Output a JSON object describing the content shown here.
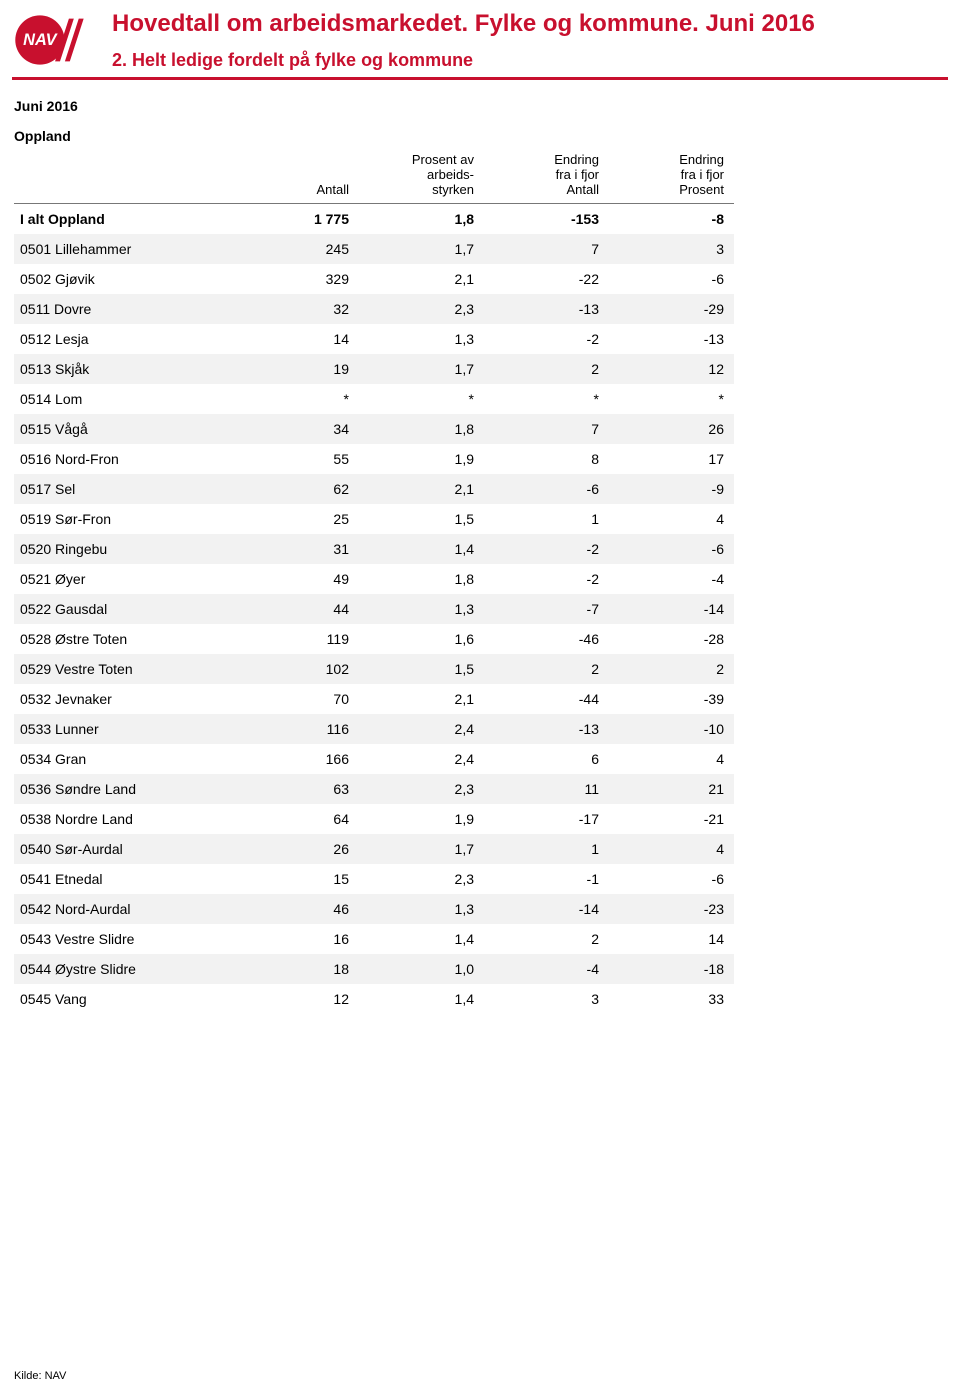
{
  "header": {
    "main_title": "Hovedtall om arbeidsmarkedet. Fylke og kommune. Juni 2016",
    "sub_title": "2. Helt ledige fordelt på fylke og kommune",
    "title_color": "#c8102e"
  },
  "logo": {
    "text": "NAV",
    "circle_fill": "#c8102e",
    "text_fill": "#ffffff",
    "slash_fill": "#c8102e"
  },
  "meta": {
    "period": "Juni 2016",
    "region": "Oppland",
    "source": "Kilde: NAV"
  },
  "table": {
    "columns": {
      "label": "",
      "antall": "Antall",
      "prosent": "Prosent av\narbeids-\nstyrken",
      "endring_antall": "Endring\nfra i fjor\nAntall",
      "endring_prosent": "Endring\nfra i fjor\nProsent"
    },
    "total_row": {
      "label": "I alt Oppland",
      "antall": "1 775",
      "prosent": "1,8",
      "endring_antall": "-153",
      "endring_prosent": "-8"
    },
    "rows": [
      {
        "label": "0501 Lillehammer",
        "antall": "245",
        "prosent": "1,7",
        "endring_antall": "7",
        "endring_prosent": "3"
      },
      {
        "label": "0502 Gjøvik",
        "antall": "329",
        "prosent": "2,1",
        "endring_antall": "-22",
        "endring_prosent": "-6"
      },
      {
        "label": "0511 Dovre",
        "antall": "32",
        "prosent": "2,3",
        "endring_antall": "-13",
        "endring_prosent": "-29"
      },
      {
        "label": "0512 Lesja",
        "antall": "14",
        "prosent": "1,3",
        "endring_antall": "-2",
        "endring_prosent": "-13"
      },
      {
        "label": "0513 Skjåk",
        "antall": "19",
        "prosent": "1,7",
        "endring_antall": "2",
        "endring_prosent": "12"
      },
      {
        "label": "0514 Lom",
        "antall": "*",
        "prosent": "*",
        "endring_antall": "*",
        "endring_prosent": "*"
      },
      {
        "label": "0515 Vågå",
        "antall": "34",
        "prosent": "1,8",
        "endring_antall": "7",
        "endring_prosent": "26"
      },
      {
        "label": "0516 Nord-Fron",
        "antall": "55",
        "prosent": "1,9",
        "endring_antall": "8",
        "endring_prosent": "17"
      },
      {
        "label": "0517 Sel",
        "antall": "62",
        "prosent": "2,1",
        "endring_antall": "-6",
        "endring_prosent": "-9"
      },
      {
        "label": "0519 Sør-Fron",
        "antall": "25",
        "prosent": "1,5",
        "endring_antall": "1",
        "endring_prosent": "4"
      },
      {
        "label": "0520 Ringebu",
        "antall": "31",
        "prosent": "1,4",
        "endring_antall": "-2",
        "endring_prosent": "-6"
      },
      {
        "label": "0521 Øyer",
        "antall": "49",
        "prosent": "1,8",
        "endring_antall": "-2",
        "endring_prosent": "-4"
      },
      {
        "label": "0522 Gausdal",
        "antall": "44",
        "prosent": "1,3",
        "endring_antall": "-7",
        "endring_prosent": "-14"
      },
      {
        "label": "0528 Østre Toten",
        "antall": "119",
        "prosent": "1,6",
        "endring_antall": "-46",
        "endring_prosent": "-28"
      },
      {
        "label": "0529 Vestre Toten",
        "antall": "102",
        "prosent": "1,5",
        "endring_antall": "2",
        "endring_prosent": "2"
      },
      {
        "label": "0532 Jevnaker",
        "antall": "70",
        "prosent": "2,1",
        "endring_antall": "-44",
        "endring_prosent": "-39"
      },
      {
        "label": "0533 Lunner",
        "antall": "116",
        "prosent": "2,4",
        "endring_antall": "-13",
        "endring_prosent": "-10"
      },
      {
        "label": "0534 Gran",
        "antall": "166",
        "prosent": "2,4",
        "endring_antall": "6",
        "endring_prosent": "4"
      },
      {
        "label": "0536 Søndre Land",
        "antall": "63",
        "prosent": "2,3",
        "endring_antall": "11",
        "endring_prosent": "21"
      },
      {
        "label": "0538 Nordre Land",
        "antall": "64",
        "prosent": "1,9",
        "endring_antall": "-17",
        "endring_prosent": "-21"
      },
      {
        "label": "0540 Sør-Aurdal",
        "antall": "26",
        "prosent": "1,7",
        "endring_antall": "1",
        "endring_prosent": "4"
      },
      {
        "label": "0541 Etnedal",
        "antall": "15",
        "prosent": "2,3",
        "endring_antall": "-1",
        "endring_prosent": "-6"
      },
      {
        "label": "0542 Nord-Aurdal",
        "antall": "46",
        "prosent": "1,3",
        "endring_antall": "-14",
        "endring_prosent": "-23"
      },
      {
        "label": "0543 Vestre Slidre",
        "antall": "16",
        "prosent": "1,4",
        "endring_antall": "2",
        "endring_prosent": "14"
      },
      {
        "label": "0544 Øystre Slidre",
        "antall": "18",
        "prosent": "1,0",
        "endring_antall": "-4",
        "endring_prosent": "-18"
      },
      {
        "label": "0545 Vang",
        "antall": "12",
        "prosent": "1,4",
        "endring_antall": "3",
        "endring_prosent": "33"
      }
    ],
    "band_color": "#f2f2f2"
  }
}
